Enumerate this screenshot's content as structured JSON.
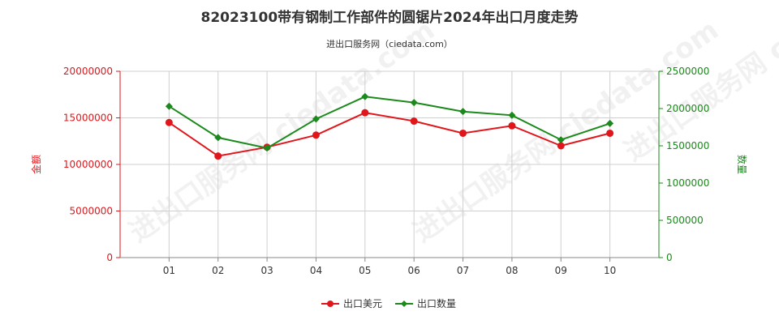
{
  "chart_data": {
    "type": "line",
    "title": "82023100带有钢制工作部件的圆锯片2024年出口月度走势",
    "subtitle": "进出口服务网（ciedata.com）",
    "watermark": "进出口服务网 ciedata.com",
    "categories": [
      "01",
      "02",
      "03",
      "04",
      "05",
      "06",
      "07",
      "08",
      "09",
      "10"
    ],
    "y_left": {
      "label": "金额",
      "range": [
        0,
        20000000
      ],
      "ticks": [
        "0",
        "5000000",
        "10000000",
        "15000000",
        "20000000"
      ]
    },
    "y_right": {
      "label": "数量",
      "range": [
        0,
        2500000
      ],
      "ticks": [
        "0",
        "500000",
        "1000000",
        "1500000",
        "2000000",
        "2500000"
      ]
    },
    "series": [
      {
        "name": "出口美元",
        "axis": "left",
        "color": "#e0161b",
        "marker": "circle",
        "values": [
          14500000,
          10900000,
          11850000,
          13150000,
          15550000,
          14650000,
          13350000,
          14150000,
          12000000,
          13350000
        ]
      },
      {
        "name": "出口数量",
        "axis": "right",
        "color": "#1a8a1a",
        "marker": "diamond",
        "values": [
          2030000,
          1610000,
          1470000,
          1860000,
          2160000,
          2080000,
          1960000,
          1910000,
          1580000,
          1800000
        ]
      }
    ],
    "legend_position": "bottom-center",
    "grid": true
  }
}
